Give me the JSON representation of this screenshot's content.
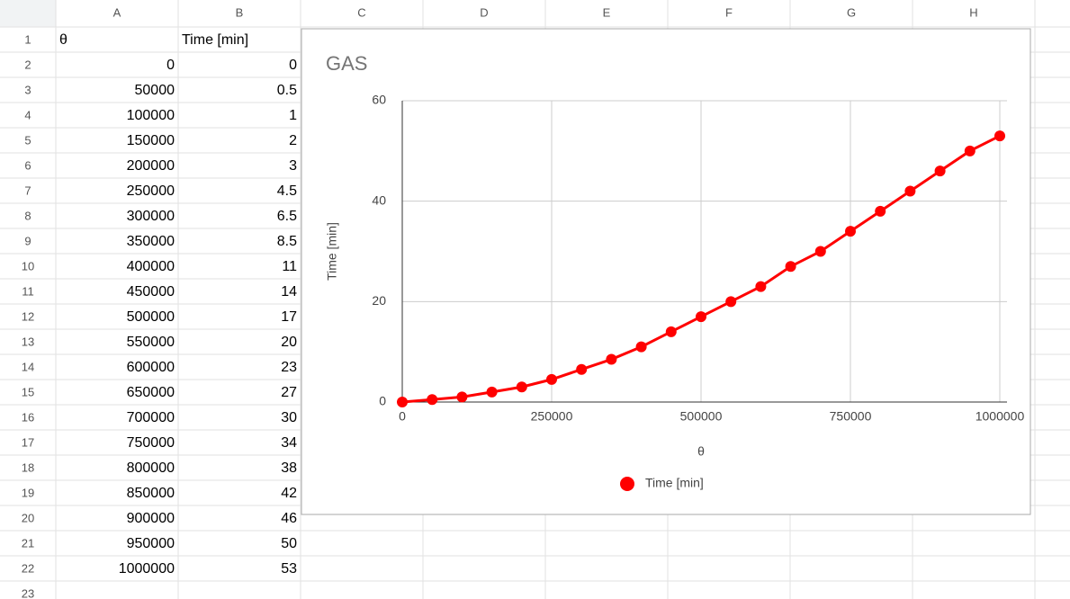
{
  "sheet": {
    "column_headers": [
      "A",
      "B",
      "C",
      "D",
      "E",
      "F",
      "G",
      "H"
    ],
    "row_numbers": [
      1,
      2,
      3,
      4,
      5,
      6,
      7,
      8,
      9,
      10,
      11,
      12,
      13,
      14,
      15,
      16,
      17,
      18,
      19,
      20,
      21,
      22,
      23
    ],
    "header": [
      "θ",
      "Time [min]"
    ]
  },
  "chart_data": {
    "type": "line",
    "title": "GAS",
    "xlabel": "θ",
    "ylabel": "Time [min]",
    "x": [
      0,
      50000,
      100000,
      150000,
      200000,
      250000,
      300000,
      350000,
      400000,
      450000,
      500000,
      550000,
      600000,
      650000,
      700000,
      750000,
      800000,
      850000,
      900000,
      950000,
      1000000
    ],
    "series": [
      {
        "name": "Time [min]",
        "color": "#ff0000",
        "values": [
          0,
          0.5,
          1,
          2,
          3,
          4.5,
          6.5,
          8.5,
          11,
          14,
          17,
          20,
          23,
          27,
          30,
          34,
          38,
          42,
          46,
          50,
          53
        ]
      }
    ],
    "xlim": [
      0,
      1000000
    ],
    "xticks": [
      0,
      250000,
      500000,
      750000,
      1000000
    ],
    "ylim": [
      0,
      60
    ],
    "yticks": [
      0,
      20,
      40,
      60
    ],
    "grid": true,
    "legend": "bottom",
    "markers": true
  }
}
